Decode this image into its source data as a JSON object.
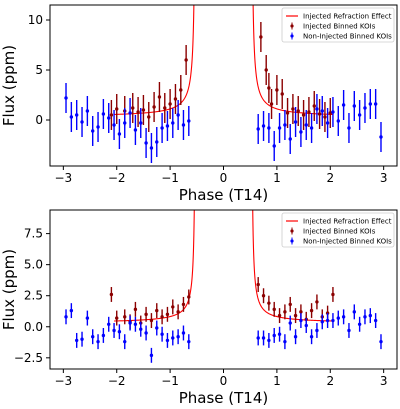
{
  "chart_data": [
    {
      "type": "scatter",
      "xlabel": "Phase (T14)",
      "ylabel": "Flux (ppm)",
      "xlim": [
        -3.25,
        3.25
      ],
      "ylim": [
        -4.6,
        11.5
      ],
      "xticks": [
        "-3",
        "-2",
        "-1",
        "0",
        "1",
        "2",
        "3"
      ],
      "yticks": [
        "0",
        "5",
        "10"
      ],
      "ytick_values": [
        0,
        5,
        10
      ],
      "grid": false,
      "legend_position": "top-right",
      "series": [
        {
          "name": "Injected Refraction Effect",
          "kind": "curve",
          "color": "#ff0000",
          "shape": {
            "A": 0.3,
            "B": 0.39,
            "x0": 0.52,
            "xmin": 0.52,
            "xmax": 2.05
          }
        },
        {
          "name": "Injected Binned KOIs",
          "kind": "errorbar",
          "color": "#8b0000",
          "x": [
            -2.1,
            -2.0,
            -1.85,
            -1.7,
            -1.6,
            -1.5,
            -1.4,
            -1.3,
            -1.2,
            -1.1,
            -1.0,
            -0.9,
            -0.8,
            -0.7,
            0.7,
            0.8,
            0.85,
            0.9,
            1.0,
            1.1,
            1.2,
            1.3,
            1.4,
            1.5,
            1.6,
            1.7,
            1.8,
            1.9,
            2.0
          ],
          "y": [
            0.5,
            1.1,
            0.9,
            1.2,
            0.8,
            1.0,
            0.3,
            1.3,
            2.3,
            1.2,
            1.6,
            2.1,
            3.0,
            6.0,
            8.3,
            5.0,
            3.2,
            1.6,
            3.0,
            2.6,
            0.7,
            1.1,
            0.9,
            0.5,
            0.8,
            1.4,
            0.6,
            0.3,
            0.7
          ],
          "err": [
            1.5,
            1.5,
            1.5,
            1.5,
            1.5,
            1.5,
            1.5,
            1.5,
            1.5,
            1.5,
            1.5,
            1.5,
            1.5,
            1.5,
            1.5,
            1.5,
            1.5,
            1.5,
            1.5,
            1.5,
            1.5,
            1.5,
            1.5,
            1.5,
            1.5,
            1.5,
            1.5,
            1.5,
            1.5
          ]
        },
        {
          "name": "Non-Injected Binned KOIs",
          "kind": "errorbar",
          "color": "#0000ff",
          "x": [
            -2.95,
            -2.85,
            -2.75,
            -2.65,
            -2.55,
            -2.45,
            -2.35,
            -2.25,
            -2.15,
            -2.05,
            -1.95,
            -1.85,
            -1.75,
            -1.65,
            -1.55,
            -1.45,
            -1.35,
            -1.25,
            -1.15,
            -1.05,
            -0.95,
            -0.85,
            -0.75,
            -0.65,
            0.65,
            0.75,
            0.85,
            0.95,
            1.05,
            1.15,
            1.25,
            1.35,
            1.45,
            1.55,
            1.65,
            1.75,
            1.85,
            1.95,
            2.05,
            2.15,
            2.25,
            2.35,
            2.45,
            2.55,
            2.65,
            2.75,
            2.85,
            2.95
          ],
          "y": [
            2.2,
            0.3,
            0.5,
            -0.2,
            0.9,
            -1.1,
            -0.7,
            0.6,
            0.2,
            -0.5,
            -1.4,
            -0.3,
            0.7,
            -1.0,
            -0.3,
            -2.3,
            -2.8,
            -2.2,
            -0.8,
            -0.6,
            -0.3,
            0.5,
            -0.5,
            -0.1,
            -0.9,
            -0.6,
            -0.8,
            -2.6,
            -0.8,
            -0.5,
            -1.9,
            -0.2,
            -1.2,
            -0.5,
            -0.8,
            1.1,
            0.9,
            -0.3,
            0.8,
            -0.1,
            1.5,
            -0.8,
            1.4,
            0.5,
            1.2,
            1.6,
            1.6,
            -1.7
          ],
          "err": [
            1.5,
            1.5,
            1.5,
            1.5,
            1.5,
            1.5,
            1.5,
            1.5,
            1.5,
            1.5,
            1.5,
            1.5,
            1.5,
            1.5,
            1.5,
            1.5,
            1.5,
            1.5,
            1.5,
            1.5,
            1.5,
            1.5,
            1.5,
            1.5,
            1.5,
            1.5,
            1.5,
            1.5,
            1.5,
            1.5,
            1.5,
            1.5,
            1.5,
            1.5,
            1.5,
            1.5,
            1.5,
            1.5,
            1.5,
            1.5,
            1.5,
            1.5,
            1.5,
            1.5,
            1.5,
            1.5,
            1.5,
            1.5
          ]
        }
      ]
    },
    {
      "type": "scatter",
      "xlabel": "Phase (T14)",
      "ylabel": "Flux (ppm)",
      "xlim": [
        -3.25,
        3.25
      ],
      "ylim": [
        -3.4,
        9.4
      ],
      "xticks": [
        "-3",
        "-2",
        "-1",
        "0",
        "1",
        "2",
        "3"
      ],
      "yticks": [
        "-2.5",
        "0.0",
        "2.5",
        "5.0",
        "7.5"
      ],
      "ytick_values": [
        -2.5,
        0,
        2.5,
        5,
        7.5
      ],
      "grid": false,
      "legend_position": "top-right",
      "series": [
        {
          "name": "Injected Refraction Effect",
          "kind": "curve",
          "color": "#ff0000",
          "shape": {
            "A": 0.3,
            "B": 0.25,
            "x0": 0.52,
            "xmin": 0.52,
            "xmax": 2.05
          }
        },
        {
          "name": "Injected Binned KOIs",
          "kind": "errorbar",
          "color": "#8b0000",
          "x": [
            -2.1,
            -2.0,
            -1.85,
            -1.75,
            -1.65,
            -1.55,
            -1.45,
            -1.35,
            -1.25,
            -1.15,
            -1.05,
            -0.95,
            -0.85,
            -0.75,
            -0.65,
            0.65,
            0.75,
            0.85,
            0.95,
            1.05,
            1.15,
            1.25,
            1.35,
            1.45,
            1.55,
            1.65,
            1.75,
            1.85,
            1.95,
            2.05
          ],
          "y": [
            2.6,
            0.7,
            0.8,
            0.4,
            1.4,
            0.3,
            1.0,
            0.5,
            1.3,
            0.8,
            1.0,
            1.6,
            1.2,
            1.8,
            2.4,
            3.4,
            2.5,
            1.9,
            1.4,
            0.9,
            1.2,
            1.8,
            0.9,
            1.2,
            0.6,
            1.3,
            2.0,
            0.8,
            1.1,
            2.6
          ],
          "err": [
            0.6,
            0.6,
            0.6,
            0.6,
            0.6,
            0.6,
            0.6,
            0.6,
            0.6,
            0.6,
            0.6,
            0.6,
            0.6,
            0.6,
            0.6,
            0.6,
            0.6,
            0.6,
            0.6,
            0.6,
            0.6,
            0.6,
            0.6,
            0.6,
            0.6,
            0.6,
            0.6,
            0.6,
            0.6,
            0.6
          ]
        },
        {
          "name": "Non-Injected Binned KOIs",
          "kind": "errorbar",
          "color": "#0000ff",
          "x": [
            -2.95,
            -2.85,
            -2.75,
            -2.65,
            -2.55,
            -2.45,
            -2.35,
            -2.25,
            -2.15,
            -2.05,
            -1.95,
            -1.85,
            -1.75,
            -1.65,
            -1.55,
            -1.45,
            -1.35,
            -1.25,
            -1.15,
            -1.05,
            -0.95,
            -0.85,
            -0.75,
            -0.65,
            0.65,
            0.75,
            0.85,
            0.95,
            1.05,
            1.15,
            1.25,
            1.35,
            1.45,
            1.55,
            1.65,
            1.75,
            1.85,
            1.95,
            2.05,
            2.15,
            2.25,
            2.35,
            2.45,
            2.55,
            2.65,
            2.75,
            2.85,
            2.95
          ],
          "y": [
            0.8,
            1.3,
            -1.1,
            -1.0,
            0.7,
            -0.8,
            -1.2,
            -0.7,
            0.2,
            -0.3,
            -0.4,
            -1.2,
            0.3,
            0.2,
            -0.2,
            -0.5,
            -2.3,
            -0.1,
            -0.6,
            -1.1,
            -0.9,
            -0.8,
            -0.5,
            -1.2,
            -0.9,
            -0.9,
            -1.1,
            -0.7,
            -0.6,
            -1.2,
            0.3,
            -0.8,
            0.5,
            0.1,
            -0.8,
            -0.3,
            0.4,
            0.5,
            0.5,
            0.7,
            0.8,
            -0.3,
            1.2,
            0.2,
            0.8,
            0.9,
            0.5,
            -1.2
          ],
          "err": [
            0.6,
            0.6,
            0.6,
            0.6,
            0.6,
            0.6,
            0.6,
            0.6,
            0.6,
            0.6,
            0.6,
            0.6,
            0.6,
            0.6,
            0.6,
            0.6,
            0.6,
            0.6,
            0.6,
            0.6,
            0.6,
            0.6,
            0.6,
            0.6,
            0.6,
            0.6,
            0.6,
            0.6,
            0.6,
            0.6,
            0.6,
            0.6,
            0.6,
            0.6,
            0.6,
            0.6,
            0.6,
            0.6,
            0.6,
            0.6,
            0.6,
            0.6,
            0.6,
            0.6,
            0.6,
            0.6,
            0.6,
            0.6
          ]
        }
      ]
    }
  ]
}
